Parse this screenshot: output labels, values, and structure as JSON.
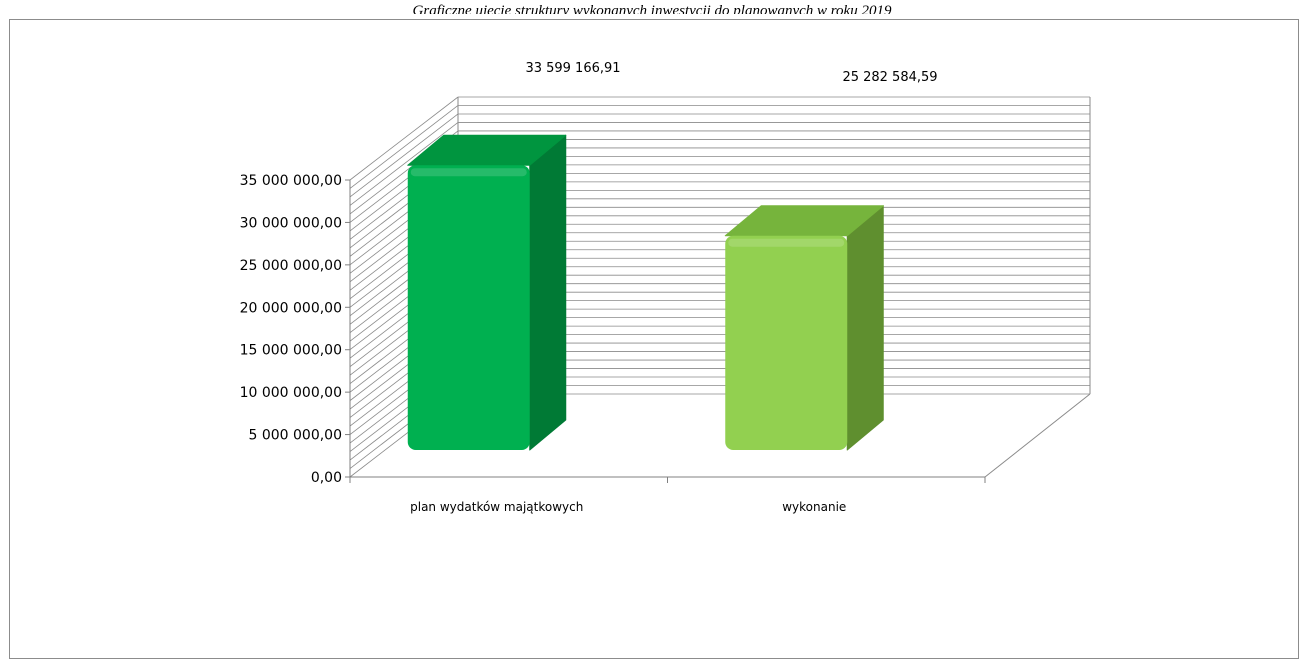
{
  "caption": "Graficzne ujęcie struktury wykonanych inwestycji do planowanych w roku 2019",
  "chart_data": {
    "type": "bar",
    "style": "3d-column",
    "categories": [
      "plan wydatków majątkowych",
      "wykonanie"
    ],
    "values": [
      33599166.91,
      25282584.59
    ],
    "data_labels": [
      "33 599 166,91",
      "25 282 584,59"
    ],
    "ylim": [
      0,
      35000000
    ],
    "yticks": [
      0,
      5000000,
      10000000,
      15000000,
      20000000,
      25000000,
      30000000,
      35000000
    ],
    "ytick_labels": [
      "0,00",
      "5 000 000,00",
      "10 000 000,00",
      "15 000 000,00",
      "20 000 000,00",
      "25 000 000,00",
      "30 000 000,00",
      "35 000 000,00"
    ],
    "grid": true,
    "legend": "none",
    "colors": {
      "bars": [
        {
          "front": "#00b050",
          "side": "#007a35",
          "top": "#00953f"
        },
        {
          "front": "#92d050",
          "side": "#5f8f2f",
          "top": "#76b43c"
        }
      ],
      "gridline": "#8a8a8a"
    }
  }
}
